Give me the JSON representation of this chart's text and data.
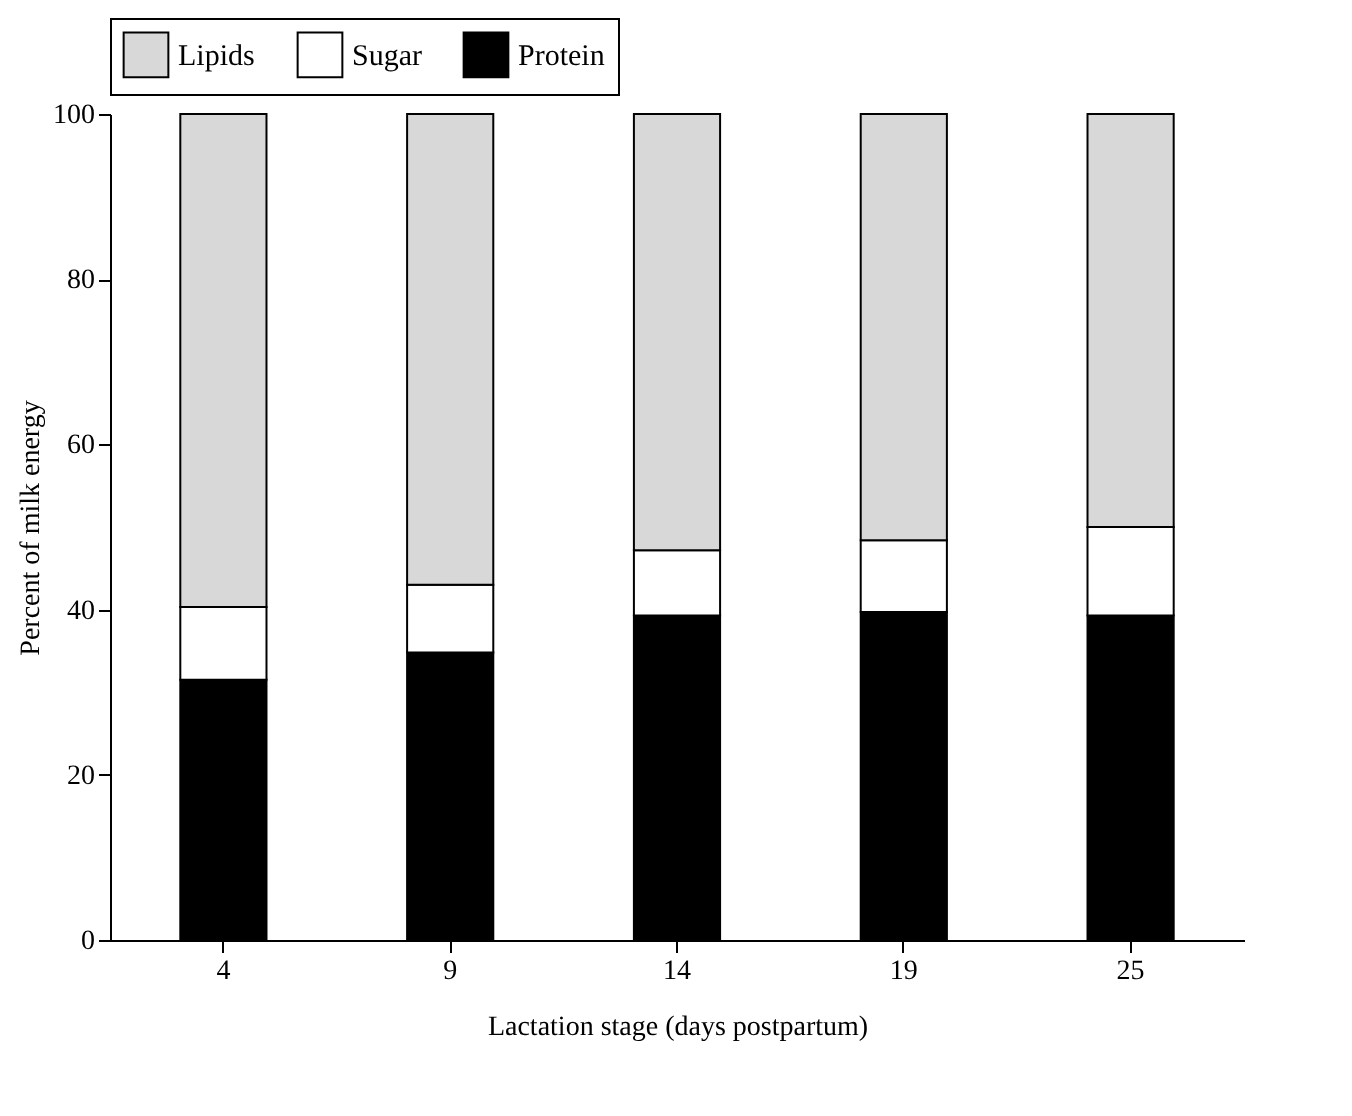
{
  "chart_data": {
    "type": "bar",
    "stacked": true,
    "xlabel": "Lactation stage (days postpartum)",
    "ylabel": "Percent of milk energy",
    "categories": [
      "4",
      "9",
      "14",
      "19",
      "25"
    ],
    "series": [
      {
        "name": "Protein",
        "color": "#000000",
        "values": [
          31.5,
          34.8,
          39.3,
          39.7,
          39.3
        ]
      },
      {
        "name": "Sugar",
        "color": "#ffffff",
        "values": [
          8.8,
          8.2,
          7.9,
          8.7,
          10.7
        ]
      },
      {
        "name": "Lipids",
        "color": "#d8d8d8",
        "values": [
          59.7,
          57.0,
          52.8,
          51.6,
          50.0
        ]
      }
    ],
    "ylim": [
      0,
      100
    ],
    "yticks": [
      0,
      20,
      40,
      60,
      80,
      100
    ],
    "grid": false,
    "legend": "top"
  }
}
